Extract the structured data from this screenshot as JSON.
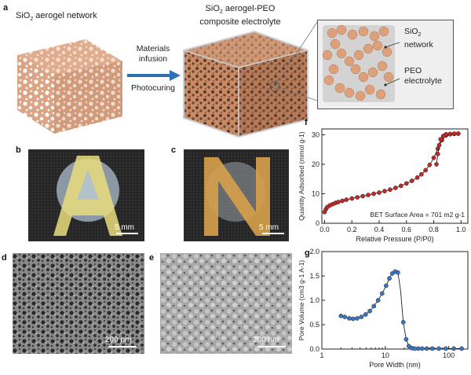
{
  "panels": {
    "a": {
      "label": "a",
      "network_title": "SiO",
      "network_sub": "2",
      "network_rest": " aerogel network",
      "arrow_top1": "Materials",
      "arrow_top2": "infusion",
      "arrow_bottom": "Photocuring",
      "composite_l1a": "SiO",
      "composite_l1b": "2",
      "composite_l1c": " aerogel-PEO",
      "composite_l2": "composite electrolyte",
      "inset_sio2_a": "SiO",
      "inset_sio2_b": "2",
      "inset_network": "network",
      "inset_peo": "PEO",
      "inset_electrolyte": "electrolyte"
    },
    "b": {
      "label": "b",
      "scale": "5 mm",
      "letter": "A"
    },
    "c": {
      "label": "c",
      "scale": "5 mm",
      "letter": "N"
    },
    "d": {
      "label": "d",
      "scale": "200 nm"
    },
    "e": {
      "label": "e",
      "scale": "200 nm"
    },
    "f": {
      "label": "f"
    },
    "g": {
      "label": "g"
    }
  },
  "colors": {
    "arrow": "#2f6fb5",
    "aerogel": "#d9a07f",
    "isotherm_marker": "#c62828",
    "pore_marker": "#3b76c0"
  },
  "chart_data": [
    {
      "type": "line",
      "id": "f",
      "title": "",
      "xlabel": "Relative Pressure (P/P0)",
      "ylabel": "Quantity Adsorbed (mmol g-1)",
      "annotation": "BET Surface Area = 701 m2 g-1",
      "xlim": [
        -0.02,
        1.05
      ],
      "ylim": [
        0,
        32
      ],
      "xticks": [
        "0.0",
        "0.2",
        "0.4",
        "0.6",
        "0.8",
        "1.0"
      ],
      "xtick_values": [
        0,
        0.2,
        0.4,
        0.6,
        0.8,
        1.0
      ],
      "yticks": [
        "0",
        "10",
        "20",
        "30"
      ],
      "ytick_values": [
        0,
        10,
        20,
        30
      ],
      "series": [
        {
          "name": "Adsorption",
          "x": [
            0.0,
            0.01,
            0.02,
            0.04,
            0.06,
            0.08,
            0.1,
            0.13,
            0.16,
            0.2,
            0.24,
            0.28,
            0.32,
            0.36,
            0.4,
            0.44,
            0.48,
            0.52,
            0.56,
            0.6,
            0.64,
            0.68,
            0.71,
            0.74,
            0.77,
            0.8,
            0.83,
            0.86,
            0.89,
            0.92,
            0.95,
            0.98
          ],
          "y": [
            3.8,
            4.8,
            5.5,
            6.1,
            6.5,
            6.9,
            7.2,
            7.6,
            8.0,
            8.4,
            8.8,
            9.2,
            9.6,
            10.0,
            10.4,
            10.9,
            11.4,
            12.0,
            12.7,
            13.5,
            14.4,
            15.5,
            16.6,
            18.0,
            19.8,
            22.2,
            25.3,
            28.2,
            29.8,
            30.2,
            30.3,
            30.4
          ]
        },
        {
          "name": "Desorption",
          "x": [
            0.98,
            0.95,
            0.92,
            0.89,
            0.87,
            0.85,
            0.84,
            0.83,
            0.82
          ],
          "y": [
            30.4,
            30.4,
            30.3,
            30.2,
            29.6,
            28.5,
            26.5,
            23.5,
            20.0
          ]
        }
      ]
    },
    {
      "type": "line",
      "id": "g",
      "title": "",
      "xscale": "log",
      "xlabel": "Pore Width (nm)",
      "ylabel": "Pore Volume (cm3 g-1 A-1)",
      "xlim": [
        1,
        200
      ],
      "ylim": [
        0,
        2.0
      ],
      "xticks": [
        "1",
        "10",
        "100"
      ],
      "xtick_values": [
        1,
        10,
        100
      ],
      "yticks": [
        "0.0",
        "0.5",
        "1.0",
        "1.5",
        "2.0"
      ],
      "ytick_values": [
        0,
        0.5,
        1.0,
        1.5,
        2.0
      ],
      "series": [
        {
          "name": "Pore size distribution",
          "x": [
            2.0,
            2.3,
            2.7,
            3.1,
            3.6,
            4.2,
            4.9,
            5.7,
            6.6,
            7.7,
            8.9,
            10.3,
            11.6,
            12.9,
            14.3,
            15.8,
            17.4,
            19.2,
            21.3,
            23.5,
            26.2,
            29,
            33,
            38,
            45,
            55,
            70,
            90,
            120,
            160
          ],
          "y": [
            0.68,
            0.66,
            0.63,
            0.62,
            0.63,
            0.66,
            0.71,
            0.78,
            0.88,
            1.0,
            1.14,
            1.3,
            1.45,
            1.55,
            1.59,
            1.57,
            1.2,
            0.55,
            0.2,
            0.06,
            0.02,
            0.01,
            0.01,
            0.01,
            0.01,
            0.01,
            0.01,
            0.01,
            0.01,
            0.01
          ]
        }
      ]
    }
  ]
}
